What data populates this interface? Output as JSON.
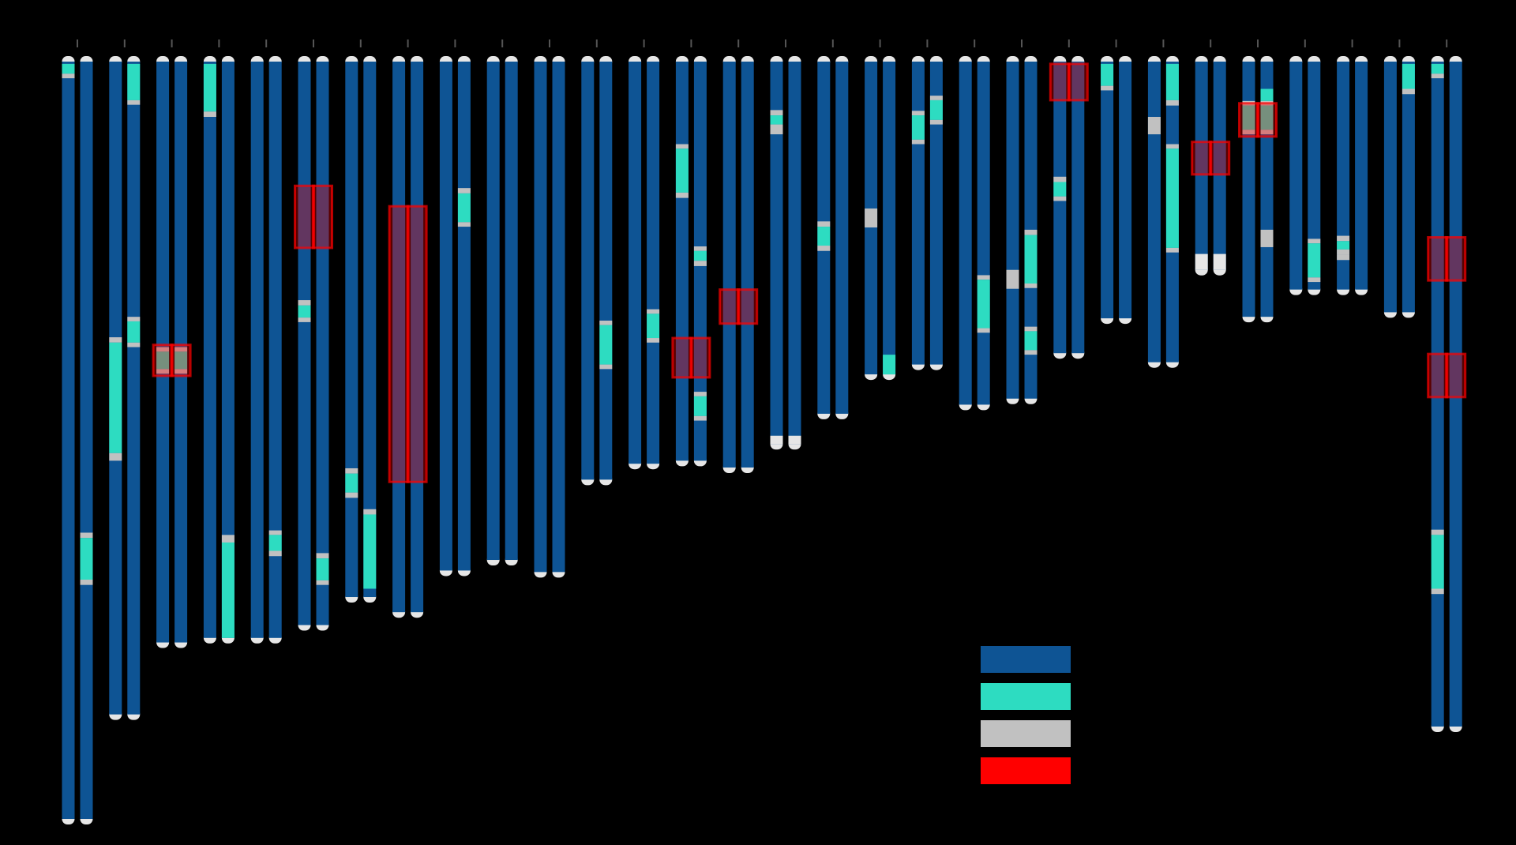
{
  "chart_data": {
    "type": "ideogram",
    "title": "",
    "xlabel": "",
    "ylabel": "",
    "ylim": [
      0,
      100
    ],
    "colors": {
      "background": "#000000",
      "chromosome": "#0e5494",
      "roh": "#2ddcc1",
      "gap": "#c1c1c1",
      "highlight": "#ff0000",
      "cap": "#e6e6e6"
    },
    "legend": [
      {
        "key": "chromosome",
        "color": "#0e5494",
        "label": ""
      },
      {
        "key": "roh",
        "color": "#2ddcc1",
        "label": ""
      },
      {
        "key": "gap",
        "color": "#c1c1c1",
        "label": ""
      },
      {
        "key": "highlight",
        "color": "#ff0000",
        "label": ""
      }
    ],
    "chromosomes": [
      {
        "length": 100,
        "a": [
          {
            "s": 0.3,
            "e": 1.6,
            "t": "roh"
          },
          {
            "s": 1.6,
            "e": 2.2,
            "t": "gap"
          }
        ],
        "b": [
          {
            "s": 62.2,
            "e": 62.9,
            "t": "gap"
          },
          {
            "s": 62.9,
            "e": 68.4,
            "t": "roh"
          },
          {
            "s": 68.4,
            "e": 69.1,
            "t": "gap"
          }
        ],
        "highlights": []
      },
      {
        "length": 86.2,
        "a": [
          {
            "s": 36.4,
            "e": 37.1,
            "t": "gap"
          },
          {
            "s": 37.1,
            "e": 51.7,
            "t": "roh"
          },
          {
            "s": 51.7,
            "e": 52.7,
            "t": "gap"
          }
        ],
        "b": [
          {
            "s": 0.3,
            "e": 5.1,
            "t": "roh"
          },
          {
            "s": 5.1,
            "e": 5.7,
            "t": "gap"
          },
          {
            "s": 33.7,
            "e": 34.3,
            "t": "gap"
          },
          {
            "s": 34.3,
            "e": 37.1,
            "t": "roh"
          },
          {
            "s": 37.1,
            "e": 37.7,
            "t": "gap"
          }
        ],
        "highlights": []
      },
      {
        "length": 76.7,
        "a": [
          {
            "s": 37.7,
            "e": 38.3,
            "t": "gap"
          },
          {
            "s": 38.3,
            "e": 40.6,
            "t": "roh"
          },
          {
            "s": 40.6,
            "e": 41.2,
            "t": "gap"
          }
        ],
        "b": [
          {
            "s": 37.7,
            "e": 38.3,
            "t": "gap"
          },
          {
            "s": 38.3,
            "e": 40.6,
            "t": "roh"
          },
          {
            "s": 40.6,
            "e": 41.2,
            "t": "gap"
          }
        ],
        "highlights": [
          {
            "s": 37.4,
            "e": 41.5
          }
        ]
      },
      {
        "length": 76.1,
        "a": [
          {
            "s": 0.3,
            "e": 6.6,
            "t": "roh"
          },
          {
            "s": 6.6,
            "e": 7.3,
            "t": "gap"
          }
        ],
        "b": [
          {
            "s": 62.5,
            "e": 63.5,
            "t": "gap"
          },
          {
            "s": 63.5,
            "e": 76.1,
            "t": "roh"
          }
        ],
        "highlights": []
      },
      {
        "length": 76.1,
        "a": [],
        "b": [
          {
            "s": 61.9,
            "e": 62.5,
            "t": "gap"
          },
          {
            "s": 62.5,
            "e": 64.6,
            "t": "roh"
          },
          {
            "s": 64.6,
            "e": 65.3,
            "t": "gap"
          }
        ],
        "highlights": []
      },
      {
        "length": 74.4,
        "a": [
          {
            "s": 31.5,
            "e": 32.2,
            "t": "gap"
          },
          {
            "s": 32.2,
            "e": 33.8,
            "t": "roh"
          },
          {
            "s": 33.8,
            "e": 34.4,
            "t": "gap"
          }
        ],
        "b": [
          {
            "s": 64.9,
            "e": 65.6,
            "t": "gap"
          },
          {
            "s": 65.6,
            "e": 68.5,
            "t": "roh"
          },
          {
            "s": 68.5,
            "e": 69.1,
            "t": "gap"
          }
        ],
        "highlights": [
          {
            "s": 16.4,
            "e": 24.6
          }
        ]
      },
      {
        "length": 70.7,
        "a": [
          {
            "s": 53.7,
            "e": 54.4,
            "t": "gap"
          },
          {
            "s": 54.4,
            "e": 56.9,
            "t": "roh"
          },
          {
            "s": 56.9,
            "e": 57.6,
            "t": "gap"
          }
        ],
        "b": [
          {
            "s": 59.1,
            "e": 59.8,
            "t": "gap"
          },
          {
            "s": 59.8,
            "e": 69.6,
            "t": "roh"
          }
        ],
        "highlights": []
      },
      {
        "length": 72.7,
        "a": [],
        "b": [],
        "highlights": [
          {
            "s": 19.1,
            "e": 55.5
          }
        ]
      },
      {
        "length": 67.2,
        "a": [],
        "b": [
          {
            "s": 16.7,
            "e": 17.4,
            "t": "gap"
          },
          {
            "s": 17.4,
            "e": 21.2,
            "t": "roh"
          },
          {
            "s": 21.2,
            "e": 21.8,
            "t": "gap"
          }
        ],
        "highlights": []
      },
      {
        "length": 65.8,
        "a": [],
        "b": [],
        "highlights": []
      },
      {
        "length": 67.4,
        "a": [],
        "b": [],
        "highlights": []
      },
      {
        "length": 55.2,
        "a": [],
        "b": [
          {
            "s": 34.2,
            "e": 34.8,
            "t": "gap"
          },
          {
            "s": 34.8,
            "e": 40.0,
            "t": "roh"
          },
          {
            "s": 40.0,
            "e": 40.6,
            "t": "gap"
          }
        ],
        "highlights": []
      },
      {
        "length": 53.1,
        "a": [],
        "b": [
          {
            "s": 32.7,
            "e": 33.3,
            "t": "gap"
          },
          {
            "s": 33.3,
            "e": 36.5,
            "t": "roh"
          },
          {
            "s": 36.5,
            "e": 37.1,
            "t": "gap"
          }
        ],
        "highlights": []
      },
      {
        "length": 52.7,
        "a": [
          {
            "s": 10.9,
            "e": 11.5,
            "t": "gap"
          },
          {
            "s": 11.5,
            "e": 17.3,
            "t": "roh"
          },
          {
            "s": 17.3,
            "e": 18.0,
            "t": "gap"
          }
        ],
        "b": [
          {
            "s": 24.4,
            "e": 25.0,
            "t": "gap"
          },
          {
            "s": 25.0,
            "e": 26.3,
            "t": "roh"
          },
          {
            "s": 26.3,
            "e": 27.0,
            "t": "gap"
          },
          {
            "s": 43.6,
            "e": 44.2,
            "t": "gap"
          },
          {
            "s": 44.2,
            "e": 46.8,
            "t": "roh"
          },
          {
            "s": 46.8,
            "e": 47.4,
            "t": "gap"
          }
        ],
        "highlights": [
          {
            "s": 36.5,
            "e": 41.7
          }
        ]
      },
      {
        "length": 53.6,
        "a": [],
        "b": [],
        "highlights": [
          {
            "s": 30.1,
            "e": 34.6
          }
        ]
      },
      {
        "length": 50.5,
        "a": [
          {
            "s": 6.4,
            "e": 7.1,
            "t": "gap"
          },
          {
            "s": 7.1,
            "e": 8.3,
            "t": "roh"
          },
          {
            "s": 8.3,
            "e": 9.6,
            "t": "gap"
          },
          {
            "s": 49.4,
            "e": 50.5,
            "t": "cap"
          }
        ],
        "b": [
          {
            "s": 49.4,
            "e": 50.5,
            "t": "cap"
          }
        ],
        "highlights": []
      },
      {
        "length": 46.5,
        "a": [
          {
            "s": 21.1,
            "e": 21.8,
            "t": "gap"
          },
          {
            "s": 21.8,
            "e": 24.3,
            "t": "roh"
          },
          {
            "s": 24.3,
            "e": 25.0,
            "t": "gap"
          }
        ],
        "b": [],
        "highlights": []
      },
      {
        "length": 41.3,
        "a": [
          {
            "s": 19.4,
            "e": 21.9,
            "t": "gap"
          }
        ],
        "b": [
          {
            "s": 38.7,
            "e": 41.3,
            "t": "roh"
          }
        ],
        "highlights": []
      },
      {
        "length": 40.0,
        "a": [
          {
            "s": 6.5,
            "e": 7.1,
            "t": "gap"
          },
          {
            "s": 7.1,
            "e": 10.3,
            "t": "roh"
          },
          {
            "s": 10.3,
            "e": 10.9,
            "t": "gap"
          }
        ],
        "b": [
          {
            "s": 4.5,
            "e": 5.1,
            "t": "gap"
          },
          {
            "s": 5.1,
            "e": 7.7,
            "t": "roh"
          },
          {
            "s": 7.7,
            "e": 8.3,
            "t": "gap"
          }
        ],
        "highlights": []
      },
      {
        "length": 45.3,
        "a": [],
        "b": [
          {
            "s": 28.2,
            "e": 28.8,
            "t": "gap"
          },
          {
            "s": 28.8,
            "e": 35.2,
            "t": "roh"
          },
          {
            "s": 35.2,
            "e": 35.8,
            "t": "gap"
          }
        ],
        "highlights": []
      },
      {
        "length": 44.5,
        "a": [
          {
            "s": 27.5,
            "e": 30.0,
            "t": "gap"
          }
        ],
        "b": [
          {
            "s": 22.2,
            "e": 22.9,
            "t": "gap"
          },
          {
            "s": 22.9,
            "e": 29.3,
            "t": "roh"
          },
          {
            "s": 29.3,
            "e": 29.9,
            "t": "gap"
          },
          {
            "s": 35.0,
            "e": 35.6,
            "t": "gap"
          },
          {
            "s": 35.6,
            "e": 38.1,
            "t": "roh"
          },
          {
            "s": 38.1,
            "e": 38.7,
            "t": "gap"
          }
        ],
        "highlights": []
      },
      {
        "length": 38.5,
        "a": [
          {
            "s": 15.2,
            "e": 15.9,
            "t": "gap"
          },
          {
            "s": 15.9,
            "e": 17.8,
            "t": "roh"
          },
          {
            "s": 17.8,
            "e": 18.4,
            "t": "gap"
          }
        ],
        "b": [],
        "highlights": [
          {
            "s": 0.3,
            "e": 5.1
          }
        ]
      },
      {
        "length": 33.9,
        "a": [
          {
            "s": 0.3,
            "e": 3.2,
            "t": "roh"
          },
          {
            "s": 3.2,
            "e": 3.8,
            "t": "gap"
          }
        ],
        "b": [],
        "highlights": []
      },
      {
        "length": 39.7,
        "a": [
          {
            "s": 7.3,
            "e": 9.6,
            "t": "gap"
          }
        ],
        "b": [
          {
            "s": 0.3,
            "e": 5.1,
            "t": "roh"
          },
          {
            "s": 5.1,
            "e": 5.8,
            "t": "gap"
          },
          {
            "s": 10.9,
            "e": 11.5,
            "t": "gap"
          },
          {
            "s": 11.5,
            "e": 24.6,
            "t": "roh"
          },
          {
            "s": 24.6,
            "e": 25.2,
            "t": "gap"
          }
        ],
        "highlights": []
      },
      {
        "length": 27.5,
        "a": [
          {
            "s": 25.4,
            "e": 27.5,
            "t": "cap"
          }
        ],
        "b": [
          {
            "s": 25.4,
            "e": 27.5,
            "t": "cap"
          }
        ],
        "highlights": [
          {
            "s": 10.6,
            "e": 14.9
          }
        ]
      },
      {
        "length": 33.7,
        "a": [
          {
            "s": 5.2,
            "e": 5.8,
            "t": "gap"
          },
          {
            "s": 5.8,
            "e": 9.0,
            "t": "roh"
          },
          {
            "s": 9.0,
            "e": 9.6,
            "t": "gap"
          }
        ],
        "b": [
          {
            "s": 3.6,
            "e": 5.2,
            "t": "roh"
          },
          {
            "s": 5.2,
            "e": 5.8,
            "t": "gap"
          },
          {
            "s": 5.8,
            "e": 9.0,
            "t": "roh"
          },
          {
            "s": 9.0,
            "e": 9.6,
            "t": "gap"
          },
          {
            "s": 22.2,
            "e": 24.5,
            "t": "gap"
          }
        ],
        "highlights": [
          {
            "s": 5.5,
            "e": 9.9
          }
        ]
      },
      {
        "length": 30.1,
        "a": [],
        "b": [
          {
            "s": 23.4,
            "e": 24.0,
            "t": "gap"
          },
          {
            "s": 24.0,
            "e": 28.5,
            "t": "roh"
          },
          {
            "s": 28.5,
            "e": 29.1,
            "t": "gap"
          }
        ],
        "highlights": []
      },
      {
        "length": 30.1,
        "a": [
          {
            "s": 23.0,
            "e": 23.7,
            "t": "gap"
          },
          {
            "s": 23.7,
            "e": 24.8,
            "t": "roh"
          },
          {
            "s": 24.8,
            "e": 25.5,
            "t": "gap"
          },
          {
            "s": 25.5,
            "e": 26.2,
            "t": "gap"
          }
        ],
        "b": [],
        "highlights": []
      },
      {
        "length": 33.1,
        "a": [],
        "b": [
          {
            "s": 0.3,
            "e": 3.6,
            "t": "roh"
          },
          {
            "s": 3.6,
            "e": 4.3,
            "t": "gap"
          }
        ],
        "highlights": []
      },
      {
        "length": 87.8,
        "a": [
          {
            "s": 0.3,
            "e": 1.6,
            "t": "roh"
          },
          {
            "s": 1.6,
            "e": 2.2,
            "t": "gap"
          },
          {
            "s": 61.8,
            "e": 62.5,
            "t": "gap"
          },
          {
            "s": 62.5,
            "e": 69.6,
            "t": "roh"
          },
          {
            "s": 69.6,
            "e": 70.3,
            "t": "gap"
          }
        ],
        "b": [],
        "highlights": [
          {
            "s": 23.2,
            "e": 28.9
          },
          {
            "s": 38.6,
            "e": 44.3
          }
        ]
      }
    ]
  }
}
